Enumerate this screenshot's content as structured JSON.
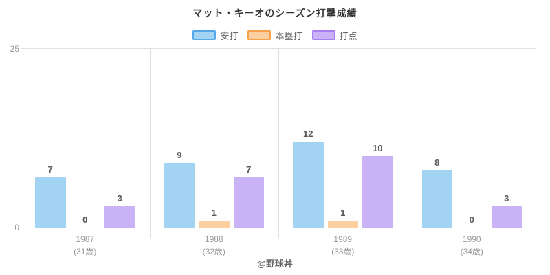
{
  "title": "マット・キーオのシーズン打撃成績",
  "footer": "@野球丼",
  "chart_data": {
    "type": "bar",
    "title": "マット・キーオのシーズン打撃成績",
    "categories": [
      "1987",
      "1988",
      "1989",
      "1990"
    ],
    "category_sublabels": [
      "(31歳)",
      "(32歳)",
      "(33歳)",
      "(34歳)"
    ],
    "series": [
      {
        "name": "安打",
        "fill": "#a3d3f3",
        "border": "#55a9e8",
        "values": [
          7,
          9,
          12,
          8
        ]
      },
      {
        "name": "本塁打",
        "fill": "#fbcfa0",
        "border": "#f9a04b",
        "values": [
          0,
          1,
          1,
          0
        ]
      },
      {
        "name": "打点",
        "fill": "#c9b3f6",
        "border": "#a87ff2",
        "values": [
          3,
          7,
          10,
          3
        ]
      }
    ],
    "ylim": [
      0,
      25
    ],
    "yticks": [
      0,
      25
    ],
    "legend_position": "top",
    "grid": "group-separator-lines",
    "value_labels": "above-bars"
  }
}
